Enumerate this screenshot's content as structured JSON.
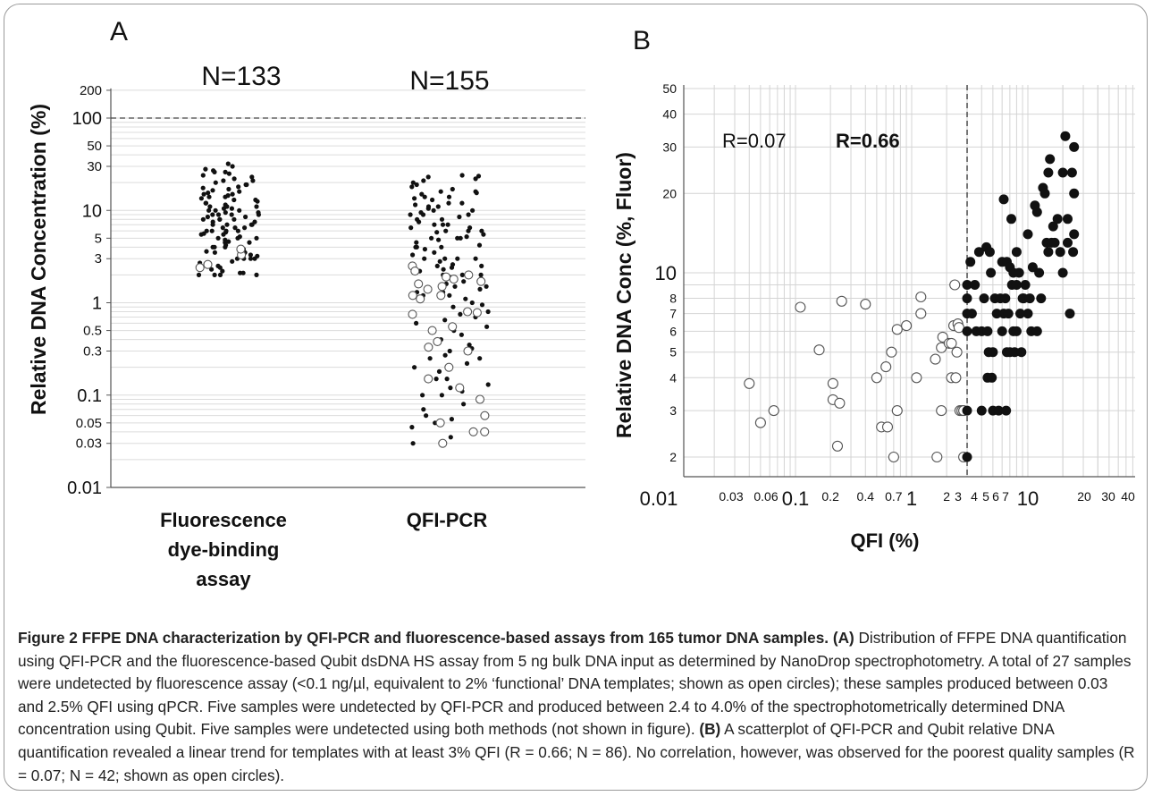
{
  "figure": {
    "caption_title": "Figure 2 FFPE DNA characterization by QFI-PCR and fluorescence-based assays from 165 tumor DNA samples.",
    "caption_a_label": "(A)",
    "caption_a_text": "Distribution of FFPE DNA quantification using QFI-PCR and the fluorescence-based Qubit dsDNA HS assay from 5 ng bulk DNA input as determined by NanoDrop spectrophotometry. A total of 27 samples were undetected by fluorescence assay (<0.1 ng/µl, equivalent to 2% ‘functional’ DNA templates; shown as open circles); these samples produced between 0.03 and 2.5% QFI using qPCR. Five samples were undetected by QFI-PCR and produced between 2.4 to 4.0% of the spectrophotometrically determined DNA concentration using Qubit. Five samples were undetected using both methods (not shown in figure).",
    "caption_b_label": "(B)",
    "caption_b_text": "A scatterplot of QFI-PCR and Qubit relative DNA quantification revealed a linear trend for templates with at least 3% QFI (R = 0.66; N = 86). No correlation, however, was observed for the poorest quality samples (R = 0.07; N = 42; shown as open circles)."
  },
  "chart_data": [
    {
      "type": "scatter",
      "panel_label": "A",
      "ylabel": "Relative DNA Concentration (%)",
      "y_scale": "log",
      "ylim": [
        0.01,
        200
      ],
      "y_ticks": [
        0.01,
        0.03,
        0.05,
        0.1,
        0.3,
        0.5,
        1,
        3,
        5,
        10,
        30,
        50,
        100,
        200
      ],
      "y_tick_labels": [
        "0.01",
        "0.03",
        "0.05",
        "0.1",
        "0.3",
        "0.5",
        "1",
        "3",
        "5",
        "10",
        "30",
        "50",
        "100",
        "200"
      ],
      "reference_line": 100,
      "grid": "horizontal",
      "categories": [
        {
          "name": "Fluorescence\ndye-binding\nassay",
          "label_lines": [
            "Fluorescence",
            "dye-binding",
            "assay"
          ],
          "n_label": "N=133"
        },
        {
          "name": "QFI-PCR",
          "label_lines": [
            "QFI-PCR"
          ],
          "n_label": "N=155"
        }
      ],
      "series": [
        {
          "category": 0,
          "marker": "filled",
          "values": [
            32,
            30,
            28,
            27,
            26,
            25,
            24,
            23,
            22,
            21,
            20,
            19,
            18,
            17.5,
            17,
            16.5,
            16,
            15.5,
            15,
            14.5,
            14,
            13.5,
            13,
            12.5,
            12,
            11.5,
            11,
            11,
            10.5,
            10.5,
            10,
            10,
            10,
            9.5,
            9.5,
            9,
            9,
            9,
            8.5,
            8.5,
            8,
            8,
            8,
            7.5,
            7.5,
            7,
            7,
            7,
            6.5,
            6.5,
            6.5,
            6,
            6,
            6,
            5.8,
            5.6,
            5.5,
            5.5,
            5.2,
            5,
            5,
            5,
            4.8,
            4.6,
            4.5,
            4.5,
            4.2,
            4,
            4,
            4,
            3.8,
            3.6,
            3.5,
            3.5,
            3.3,
            3.2,
            3,
            3,
            3,
            3,
            2.8,
            2.7,
            2.5,
            2.4,
            2.3,
            2.2,
            2.1,
            2.1,
            2,
            2,
            2,
            2,
            13,
            14,
            15,
            9,
            6,
            7,
            8,
            11,
            12,
            19,
            21,
            26
          ]
        },
        {
          "category": 0,
          "marker": "open",
          "values": [
            2.4,
            2.6,
            3.3,
            3.8
          ]
        },
        {
          "category": 1,
          "marker": "filled",
          "values": [
            24,
            23.5,
            23,
            22,
            21,
            20,
            19,
            18,
            17,
            16,
            15.5,
            15,
            14,
            13.5,
            13,
            12,
            11.5,
            11,
            10.5,
            10,
            10,
            9.5,
            9,
            9,
            8.5,
            8,
            8,
            7.5,
            7,
            7,
            6.5,
            6.5,
            6,
            6,
            5.8,
            5.5,
            5.2,
            5,
            5,
            4.8,
            4.5,
            4.2,
            4,
            4,
            3.8,
            3.5,
            3.3,
            3,
            3,
            2.8,
            2.6,
            2.5,
            2.4,
            2.3,
            2.2,
            2,
            2,
            1.9,
            1.8,
            1.7,
            1.6,
            1.5,
            1.4,
            1.3,
            1.2,
            1.1,
            1,
            0.95,
            0.9,
            0.8,
            0.75,
            0.7,
            0.65,
            0.6,
            0.55,
            0.5,
            0.45,
            0.4,
            0.35,
            0.32,
            0.3,
            0.27,
            0.25,
            0.22,
            0.2,
            0.18,
            0.15,
            0.13,
            0.11,
            0.1,
            0.08,
            0.07,
            0.06,
            0.055,
            0.05,
            0.045,
            0.04,
            0.035,
            0.03,
            16,
            14,
            12,
            11,
            9,
            7,
            6,
            5,
            4,
            3,
            3,
            2.5,
            2,
            1.8,
            1.5,
            1.3,
            1.2,
            0.2,
            0.25,
            0.1,
            0.12,
            0.15
          ]
        },
        {
          "category": 1,
          "marker": "open",
          "values": [
            2.5,
            2.2,
            2.0,
            1.9,
            1.8,
            1.7,
            1.6,
            1.5,
            1.4,
            1.2,
            1.2,
            1.1,
            0.8,
            0.78,
            0.75,
            0.55,
            0.5,
            0.38,
            0.33,
            0.3,
            0.2,
            0.15,
            0.12,
            0.09,
            0.06,
            0.05,
            0.04,
            0.04,
            0.03
          ]
        }
      ]
    },
    {
      "type": "scatter",
      "panel_label": "B",
      "xlabel": "QFI (%)",
      "ylabel": "Relative DNA Conc (%, Fluor)",
      "x_scale": "log",
      "y_scale": "log",
      "xlim": [
        0.01,
        50
      ],
      "ylim": [
        1.5,
        50
      ],
      "x_tick_labels": [
        "0.01",
        "0.03",
        "0.06",
        "0.1",
        "0.2",
        "0.4",
        "0.7",
        "1",
        "2",
        "3",
        "4",
        "5",
        "6",
        "7",
        "10",
        "20",
        "30",
        "40"
      ],
      "y_tick_labels": [
        "2",
        "3",
        "4",
        "5",
        "6",
        "7",
        "8",
        "10",
        "20",
        "30",
        "40",
        "50"
      ],
      "reference_line_x": 3,
      "annotations": [
        "R=0.07",
        "R=0.66"
      ],
      "grid": "both",
      "open_points": [
        [
          0.04,
          3.8
        ],
        [
          0.05,
          2.7
        ],
        [
          0.065,
          3
        ],
        [
          0.11,
          7.4
        ],
        [
          0.16,
          5.1
        ],
        [
          0.21,
          3.8
        ],
        [
          0.21,
          3.3
        ],
        [
          0.23,
          2.2
        ],
        [
          0.24,
          3.2
        ],
        [
          0.25,
          7.8
        ],
        [
          0.4,
          7.6
        ],
        [
          0.5,
          4
        ],
        [
          0.55,
          2.6
        ],
        [
          0.6,
          4.4
        ],
        [
          0.62,
          2.6
        ],
        [
          0.67,
          5
        ],
        [
          0.7,
          2
        ],
        [
          0.75,
          3
        ],
        [
          0.75,
          6.1
        ],
        [
          0.9,
          6.3
        ],
        [
          1.1,
          4
        ],
        [
          1.2,
          7
        ],
        [
          1.2,
          8.1
        ],
        [
          1.6,
          4.7
        ],
        [
          1.65,
          2
        ],
        [
          1.8,
          3
        ],
        [
          1.8,
          5.2
        ],
        [
          1.85,
          5.7
        ],
        [
          2.1,
          5.4
        ],
        [
          2.2,
          5.4
        ],
        [
          2.2,
          4
        ],
        [
          2.3,
          6.3
        ],
        [
          2.35,
          9
        ],
        [
          2.4,
          4
        ],
        [
          2.45,
          5
        ],
        [
          2.5,
          6.4
        ],
        [
          2.55,
          6.2
        ],
        [
          2.6,
          3
        ],
        [
          2.7,
          3
        ],
        [
          2.8,
          3
        ],
        [
          2.8,
          2
        ]
      ],
      "filled_points": [
        [
          3,
          2
        ],
        [
          3,
          3
        ],
        [
          3,
          6
        ],
        [
          3,
          7
        ],
        [
          3,
          8
        ],
        [
          3,
          9
        ],
        [
          3.2,
          11
        ],
        [
          3.3,
          7
        ],
        [
          3.5,
          9
        ],
        [
          3.6,
          6
        ],
        [
          3.8,
          12
        ],
        [
          4,
          6
        ],
        [
          4,
          3
        ],
        [
          4.2,
          8
        ],
        [
          4.4,
          12.5
        ],
        [
          4.5,
          4
        ],
        [
          4.5,
          6
        ],
        [
          4.6,
          5
        ],
        [
          4.7,
          12
        ],
        [
          4.8,
          10
        ],
        [
          4.9,
          4
        ],
        [
          5,
          3
        ],
        [
          5,
          5
        ],
        [
          5.2,
          8
        ],
        [
          5.4,
          7
        ],
        [
          5.6,
          3
        ],
        [
          5.8,
          8
        ],
        [
          6,
          11
        ],
        [
          6,
          6
        ],
        [
          6.2,
          7
        ],
        [
          6.2,
          19
        ],
        [
          6.4,
          8
        ],
        [
          6.5,
          3
        ],
        [
          6.6,
          11
        ],
        [
          6.6,
          5
        ],
        [
          6.8,
          7
        ],
        [
          7,
          10.5
        ],
        [
          7,
          5
        ],
        [
          7.2,
          16
        ],
        [
          7.3,
          9
        ],
        [
          7.5,
          6
        ],
        [
          7.5,
          10
        ],
        [
          7.7,
          5
        ],
        [
          8,
          9
        ],
        [
          8,
          12
        ],
        [
          8,
          6
        ],
        [
          8.4,
          10
        ],
        [
          8.6,
          7
        ],
        [
          8.8,
          5
        ],
        [
          9,
          8
        ],
        [
          9.2,
          8
        ],
        [
          9.5,
          9
        ],
        [
          10,
          7
        ],
        [
          10,
          14
        ],
        [
          10.4,
          8
        ],
        [
          10.7,
          6
        ],
        [
          11,
          10.5
        ],
        [
          11.5,
          18
        ],
        [
          12,
          6
        ],
        [
          12,
          17
        ],
        [
          12.5,
          10
        ],
        [
          13,
          8
        ],
        [
          13.5,
          21
        ],
        [
          14,
          20
        ],
        [
          14.5,
          13
        ],
        [
          15,
          12
        ],
        [
          15,
          24
        ],
        [
          15.5,
          27
        ],
        [
          16,
          13
        ],
        [
          16.5,
          15
        ],
        [
          17,
          13
        ],
        [
          18,
          16
        ],
        [
          19,
          12
        ],
        [
          20,
          24
        ],
        [
          20,
          10
        ],
        [
          21,
          33
        ],
        [
          22,
          13
        ],
        [
          22,
          16
        ],
        [
          23,
          7
        ],
        [
          24,
          24
        ],
        [
          24.5,
          12
        ],
        [
          25,
          30
        ],
        [
          25,
          20
        ],
        [
          25,
          14
        ]
      ]
    }
  ]
}
